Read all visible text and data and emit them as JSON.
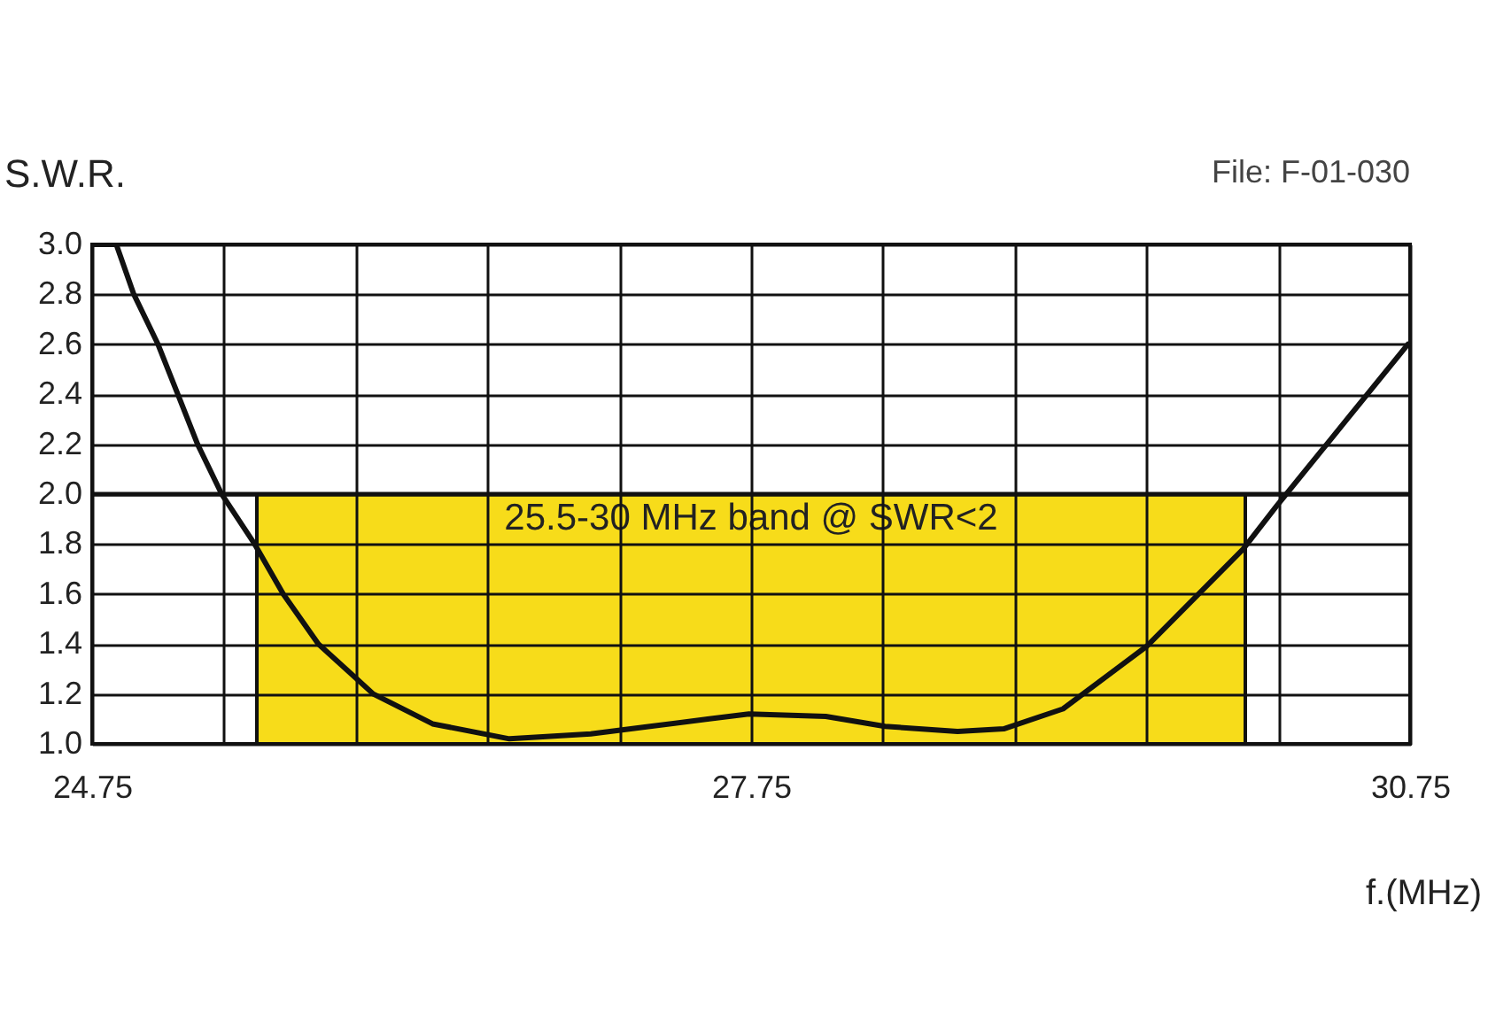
{
  "chart_data": {
    "type": "line",
    "ylabel": "S.W.R.",
    "xlabel": "f.(MHz)",
    "annotations": [
      "File:  F-01-030",
      "25.5-30 MHz band @ SWR<2"
    ],
    "x": [
      24.75,
      24.86,
      24.94,
      25.05,
      25.14,
      25.23,
      25.34,
      25.49,
      25.62,
      25.78,
      26.03,
      26.3,
      26.65,
      27.02,
      27.29,
      27.56,
      27.74,
      28.09,
      28.36,
      28.69,
      28.9,
      29.17,
      29.55,
      29.99,
      30.14,
      30.38,
      30.74
    ],
    "series": [
      {
        "color": "#111111",
        "values": [
          3.0,
          3.0,
          2.8,
          2.6,
          2.4,
          2.2,
          2.0,
          1.8,
          1.6,
          1.4,
          1.2,
          1.08,
          1.02,
          1.04,
          1.07,
          1.1,
          1.12,
          1.11,
          1.07,
          1.05,
          1.06,
          1.14,
          1.39,
          1.78,
          1.95,
          2.21,
          2.6
        ]
      }
    ],
    "xlim": [
      24.75,
      30.75
    ],
    "xticks": [
      24.75,
      {
        "value": 25.35,
        "label": null
      },
      {
        "value": 25.95,
        "label": null
      },
      {
        "value": 26.55,
        "label": null
      },
      {
        "value": 27.15,
        "label": null
      },
      27.75,
      {
        "value": 28.35,
        "label": null
      },
      {
        "value": 28.95,
        "label": null
      },
      {
        "value": 29.55,
        "label": null
      },
      {
        "value": 30.15,
        "label": null
      },
      30.75
    ],
    "ylim": [
      1.0,
      3.0
    ],
    "yticks": [
      {
        "value": 1,
        "label": "1.0"
      },
      {
        "value": 1.2,
        "label": "1.2"
      },
      {
        "value": 1.4,
        "label": "1.4"
      },
      {
        "value": 1.6,
        "label": "1.6"
      },
      {
        "value": 1.8,
        "label": "1.8"
      },
      {
        "value": 2,
        "label": "2.0"
      },
      {
        "value": 2.2,
        "label": "2.2"
      },
      {
        "value": 2.4,
        "label": "2.4"
      },
      {
        "value": 2.6,
        "label": "2.6"
      },
      {
        "value": 2.8,
        "label": "2.8"
      },
      {
        "value": 3,
        "label": "3.0"
      }
    ],
    "ref_lines": [
      {
        "axis": "y",
        "value": 2,
        "color": "#111111"
      }
    ],
    "bands": [
      {
        "axis": "x",
        "from": 25.5,
        "to": 30,
        "color": "#f7dc1a"
      }
    ],
    "grid": true,
    "marker": "none",
    "line_style": "solid"
  }
}
